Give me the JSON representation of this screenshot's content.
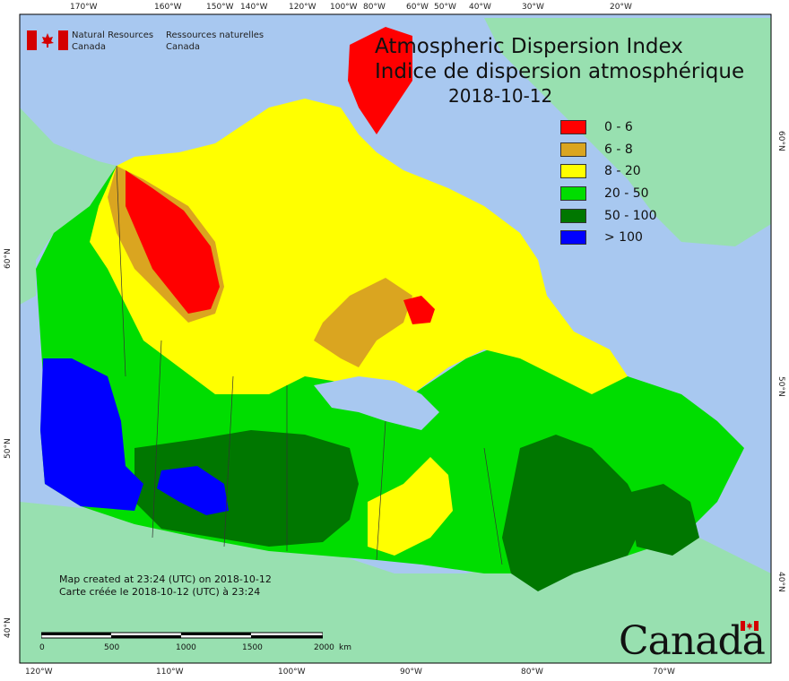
{
  "title": {
    "en": "Atmospheric Dispersion Index",
    "fr": "Indice de dispersion atmosphérique",
    "date": "2018-10-12"
  },
  "agency": {
    "en_line1": "Natural Resources",
    "en_line2": "Canada",
    "fr_line1": "Ressources naturelles",
    "fr_line2": "Canada"
  },
  "legend": [
    {
      "label": "0 - 6",
      "color": "#ff0000"
    },
    {
      "label": "6 - 8",
      "color": "#daa520"
    },
    {
      "label": "8 - 20",
      "color": "#ffff00"
    },
    {
      "label": "20 - 50",
      "color": "#00dd00"
    },
    {
      "label": "50 - 100",
      "color": "#007700"
    },
    {
      "label": "> 100",
      "color": "#0000ff"
    }
  ],
  "colors": {
    "ocean": "#a8c8f0",
    "land_outside": "#98e0b0",
    "border": "#333333"
  },
  "credits": {
    "line1": "Map created at 23:24 (UTC) on 2018-10-12",
    "line2": "Carte créée le 2018-10-12 (UTC) à 23:24"
  },
  "scalebar": {
    "ticks": [
      "0",
      "500",
      "1000",
      "1500",
      "2000"
    ],
    "unit": "km"
  },
  "wordmark": "Canada",
  "graticule": {
    "top": [
      "170°W",
      "160°W",
      "150°W",
      "140°W",
      "120°W",
      "100°W",
      "80°W",
      "60°W",
      "50°W",
      "40°W",
      "30°W",
      "20°W"
    ],
    "bottom": [
      "120°W",
      "110°W",
      "100°W",
      "90°W",
      "80°W",
      "70°W"
    ],
    "left": [
      "60°N",
      "50°N",
      "40°N"
    ],
    "right": [
      "60°N",
      "50°N",
      "40°N"
    ]
  }
}
